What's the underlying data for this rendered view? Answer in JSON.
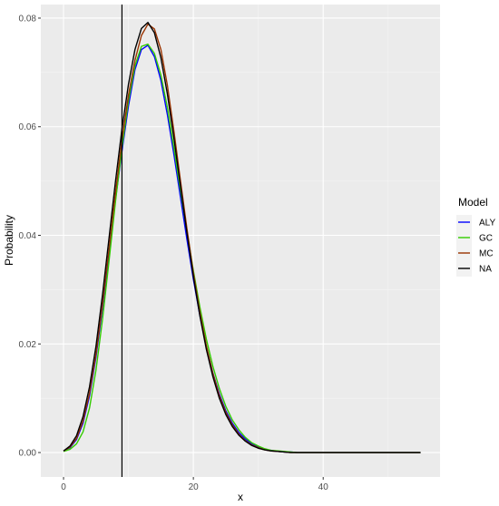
{
  "chart_data": {
    "type": "line",
    "xlabel": "x",
    "ylabel": "Probability",
    "xlim": [
      -3.5,
      58
    ],
    "ylim": [
      -0.0045,
      0.0825
    ],
    "x_ticks": [
      0,
      20,
      40
    ],
    "x_tick_labels": [
      "0",
      "20",
      "40"
    ],
    "y_ticks": [
      0.0,
      0.02,
      0.04,
      0.06,
      0.08
    ],
    "y_tick_labels": [
      "0.00",
      "0.02",
      "0.04",
      "0.06",
      "0.08"
    ],
    "grid": true,
    "background": "#ebebeb",
    "vline": {
      "x": 9,
      "color": "#000000"
    },
    "legend": {
      "title": "Model",
      "position": "right"
    },
    "series": [
      {
        "name": "ALY",
        "color": "#0000ff",
        "x": [
          0,
          1,
          2,
          3,
          4,
          5,
          6,
          7,
          8,
          9,
          10,
          11,
          12,
          13,
          14,
          15,
          16,
          17,
          18,
          19,
          20,
          21,
          22,
          23,
          24,
          25,
          26,
          27,
          28,
          29,
          30,
          31,
          32,
          33,
          34,
          35,
          36,
          37,
          38,
          39,
          40,
          41,
          42,
          43,
          44,
          45,
          46,
          47,
          48,
          49,
          50,
          51,
          52,
          53,
          54,
          55
        ],
        "values": [
          0.0003,
          0.0009,
          0.0024,
          0.0054,
          0.0104,
          0.0176,
          0.0266,
          0.0367,
          0.0466,
          0.0555,
          0.0638,
          0.0705,
          0.0742,
          0.075,
          0.0729,
          0.0685,
          0.0622,
          0.0549,
          0.0471,
          0.0393,
          0.0319,
          0.0253,
          0.0195,
          0.0147,
          0.0108,
          0.0077,
          0.0054,
          0.0037,
          0.0025,
          0.0016,
          0.001,
          0.0006,
          0.0004,
          0.0002,
          0.0001,
          0.0001,
          0.0,
          0.0,
          0.0,
          0.0,
          0.0,
          0.0,
          0.0,
          0.0,
          0.0,
          0.0,
          0.0,
          0.0,
          0.0,
          0.0,
          0.0,
          0.0,
          0.0,
          0.0,
          0.0,
          0.0
        ]
      },
      {
        "name": "GC",
        "color": "#33cc00",
        "x": [
          0,
          1,
          2,
          3,
          4,
          5,
          6,
          7,
          8,
          9,
          10,
          11,
          12,
          13,
          14,
          15,
          16,
          17,
          18,
          19,
          20,
          21,
          22,
          23,
          24,
          25,
          26,
          27,
          28,
          29,
          30,
          31,
          32,
          33,
          34,
          35,
          36,
          37,
          38,
          39,
          40,
          41,
          42,
          43,
          44,
          45,
          46,
          47,
          48,
          49,
          50,
          51,
          52,
          53,
          54,
          55
        ],
        "values": [
          0.0002,
          0.0006,
          0.0016,
          0.0038,
          0.0082,
          0.0152,
          0.0245,
          0.0352,
          0.0462,
          0.0562,
          0.0648,
          0.0712,
          0.0748,
          0.0752,
          0.0735,
          0.0695,
          0.0635,
          0.0561,
          0.0484,
          0.0408,
          0.0335,
          0.0268,
          0.0209,
          0.0159,
          0.0118,
          0.0085,
          0.006,
          0.0042,
          0.0028,
          0.0018,
          0.0012,
          0.0007,
          0.0004,
          0.0003,
          0.0002,
          0.0001,
          0.0,
          0.0,
          0.0,
          0.0,
          0.0,
          0.0,
          0.0,
          0.0,
          0.0,
          0.0,
          0.0,
          0.0,
          0.0,
          0.0,
          0.0,
          0.0,
          0.0,
          0.0,
          0.0,
          0.0
        ]
      },
      {
        "name": "MC",
        "color": "#993300",
        "x": [
          0,
          1,
          2,
          3,
          4,
          5,
          6,
          7,
          8,
          9,
          10,
          11,
          12,
          13,
          14,
          15,
          16,
          17,
          18,
          19,
          20,
          21,
          22,
          23,
          24,
          25,
          26,
          27,
          28,
          29,
          30,
          31,
          32,
          33,
          34,
          35,
          36,
          37,
          38,
          39,
          40,
          41,
          42,
          43,
          44,
          45,
          46,
          47,
          48,
          49,
          50,
          51,
          52,
          53,
          54,
          55
        ],
        "values": [
          0.0003,
          0.001,
          0.0026,
          0.0058,
          0.0109,
          0.0181,
          0.0272,
          0.0374,
          0.0478,
          0.0576,
          0.0658,
          0.0722,
          0.0768,
          0.0789,
          0.078,
          0.0742,
          0.0676,
          0.0592,
          0.0502,
          0.0413,
          0.0331,
          0.0259,
          0.0197,
          0.0146,
          0.0105,
          0.0074,
          0.0051,
          0.0034,
          0.0022,
          0.0014,
          0.0009,
          0.0005,
          0.0003,
          0.0002,
          0.0001,
          0.0,
          0.0,
          0.0,
          0.0,
          0.0,
          0.0,
          0.0,
          0.0,
          0.0,
          0.0,
          0.0,
          0.0,
          0.0,
          0.0,
          0.0,
          0.0,
          0.0,
          0.0,
          0.0,
          0.0,
          0.0
        ]
      },
      {
        "name": "NA",
        "color": "#000000",
        "x": [
          0,
          1,
          2,
          3,
          4,
          5,
          6,
          7,
          8,
          9,
          10,
          11,
          12,
          13,
          14,
          15,
          16,
          17,
          18,
          19,
          20,
          21,
          22,
          23,
          24,
          25,
          26,
          27,
          28,
          29,
          30,
          31,
          32,
          33,
          34,
          35,
          36,
          37,
          38,
          39,
          40,
          41,
          42,
          43,
          44,
          45,
          46,
          47,
          48,
          49,
          50,
          51,
          52,
          53,
          54,
          55
        ],
        "values": [
          0.0003,
          0.0012,
          0.0031,
          0.0066,
          0.0121,
          0.0196,
          0.029,
          0.0394,
          0.0499,
          0.0596,
          0.0678,
          0.0742,
          0.0781,
          0.0792,
          0.0773,
          0.0727,
          0.066,
          0.0579,
          0.0492,
          0.0405,
          0.0324,
          0.0252,
          0.019,
          0.014,
          0.01,
          0.007,
          0.0048,
          0.0032,
          0.0021,
          0.0013,
          0.0008,
          0.0005,
          0.0003,
          0.0002,
          0.0001,
          0.0,
          0.0,
          0.0,
          0.0,
          0.0,
          0.0,
          0.0,
          0.0,
          0.0,
          0.0,
          0.0,
          0.0,
          0.0,
          0.0,
          0.0,
          0.0,
          0.0,
          0.0,
          0.0,
          0.0,
          0.0
        ]
      }
    ]
  }
}
